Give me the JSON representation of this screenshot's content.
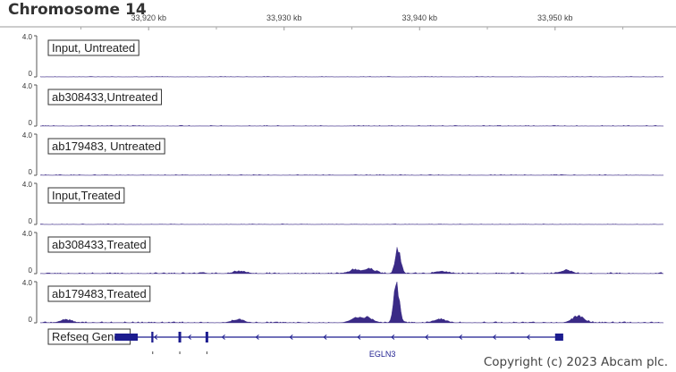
{
  "header": {
    "title": "Chromosome 14"
  },
  "colors": {
    "signal": "#3a2a86",
    "gene": "#1c1c8f",
    "axis": "#555555"
  },
  "chart_data": {
    "type": "area",
    "title": "Chromosome 14",
    "x_unit": "kb",
    "x_range": [
      33912,
      33958
    ],
    "x_ticks": [
      {
        "value": 33920,
        "label": "33,920 kb"
      },
      {
        "value": 33930,
        "label": "33,930 kb"
      },
      {
        "value": 33940,
        "label": "33,940 kb"
      },
      {
        "value": 33950,
        "label": "33,950 kb"
      }
    ],
    "y_range": [
      0,
      4.0
    ],
    "y_tick_labels": {
      "max": "4.0",
      "min": "0"
    },
    "series": [
      {
        "name": "Input, Untreated",
        "baseline": 0.05,
        "peaks": []
      },
      {
        "name": "ab308433,Untreated",
        "baseline": 0.07,
        "peaks": []
      },
      {
        "name": "ab179483, Untreated",
        "baseline": 0.07,
        "peaks": []
      },
      {
        "name": "Input,Treated",
        "baseline": 0.05,
        "peaks": []
      },
      {
        "name": "ab308433,Treated",
        "baseline": 0.12,
        "peaks": [
          {
            "x": 33938.4,
            "y": 2.6
          },
          {
            "x": 33935.2,
            "y": 0.35
          },
          {
            "x": 33936.3,
            "y": 0.45
          },
          {
            "x": 33941.6,
            "y": 0.25
          },
          {
            "x": 33950.8,
            "y": 0.3
          },
          {
            "x": 33926.7,
            "y": 0.25
          }
        ]
      },
      {
        "name": "ab179483,Treated",
        "baseline": 0.12,
        "peaks": [
          {
            "x": 33938.3,
            "y": 4.0
          },
          {
            "x": 33935.3,
            "y": 0.45
          },
          {
            "x": 33936.2,
            "y": 0.5
          },
          {
            "x": 33941.5,
            "y": 0.4
          },
          {
            "x": 33951.7,
            "y": 0.7
          },
          {
            "x": 33926.6,
            "y": 0.35
          },
          {
            "x": 33913.9,
            "y": 0.3
          }
        ]
      }
    ],
    "genes_track": {
      "label": "Refseq Genes",
      "gene": "EGLN3",
      "start": 33917.5,
      "end": 33950.6,
      "exons": [
        [
          33917.5,
          33919.2
        ],
        [
          33920.2,
          33920.35
        ],
        [
          33922.2,
          33922.4
        ],
        [
          33924.2,
          33924.4
        ],
        [
          33950.0,
          33950.6
        ]
      ],
      "strand": "-"
    }
  },
  "footer": {
    "copyright": "Copyright (c) 2023 Abcam plc."
  }
}
